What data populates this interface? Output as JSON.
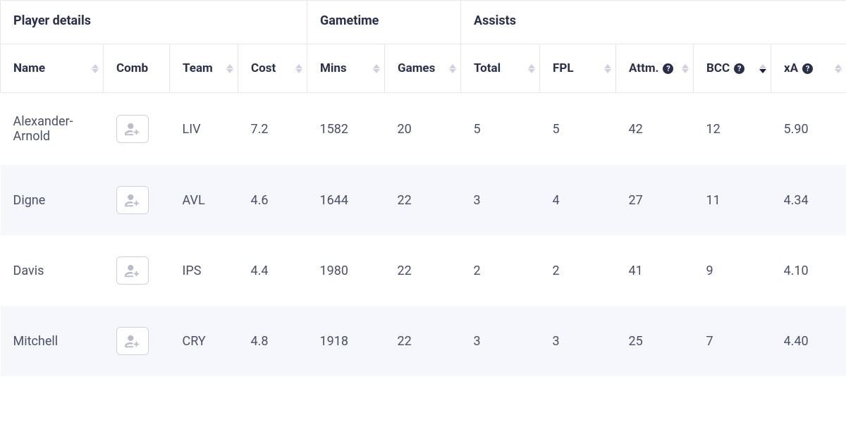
{
  "colors": {
    "text_primary": "#2a2f4a",
    "text_body": "#4a4f6a",
    "border": "#e5e7ee",
    "row_alt": "#f6f7fa",
    "sort_inactive": "#cfd2de",
    "sort_active": "#1a1d33",
    "icon_muted": "#b9bdc9"
  },
  "table": {
    "groups": [
      {
        "label": "Player details",
        "span": 4
      },
      {
        "label": "Gametime",
        "span": 2
      },
      {
        "label": "Assists",
        "span": 5
      }
    ],
    "columns": [
      {
        "key": "name",
        "label": "Name",
        "help": false,
        "sorted": null
      },
      {
        "key": "comb",
        "label": "Comb",
        "help": false,
        "sorted": null,
        "nosort": true
      },
      {
        "key": "team",
        "label": "Team",
        "help": false,
        "sorted": null
      },
      {
        "key": "cost",
        "label": "Cost",
        "help": false,
        "sorted": null
      },
      {
        "key": "mins",
        "label": "Mins",
        "help": false,
        "sorted": null
      },
      {
        "key": "games",
        "label": "Games",
        "help": false,
        "sorted": null
      },
      {
        "key": "total",
        "label": "Total",
        "help": false,
        "sorted": null
      },
      {
        "key": "fpl",
        "label": "FPL",
        "help": false,
        "sorted": null
      },
      {
        "key": "attm",
        "label": "Attm.",
        "help": true,
        "sorted": null
      },
      {
        "key": "bcc",
        "label": "BCC",
        "help": true,
        "sorted": "desc"
      },
      {
        "key": "xa",
        "label": "xA",
        "help": true,
        "sorted": null
      }
    ],
    "rows": [
      {
        "name": "Alexander-Arnold",
        "team": "LIV",
        "cost": "7.2",
        "mins": "1582",
        "games": "20",
        "total": "5",
        "fpl": "5",
        "attm": "42",
        "bcc": "12",
        "xa": "5.90"
      },
      {
        "name": "Digne",
        "team": "AVL",
        "cost": "4.6",
        "mins": "1644",
        "games": "22",
        "total": "3",
        "fpl": "4",
        "attm": "27",
        "bcc": "11",
        "xa": "4.34"
      },
      {
        "name": "Davis",
        "team": "IPS",
        "cost": "4.4",
        "mins": "1980",
        "games": "22",
        "total": "2",
        "fpl": "2",
        "attm": "41",
        "bcc": "9",
        "xa": "4.10"
      },
      {
        "name": "Mitchell",
        "team": "CRY",
        "cost": "4.8",
        "mins": "1918",
        "games": "22",
        "total": "3",
        "fpl": "3",
        "attm": "25",
        "bcc": "7",
        "xa": "4.40"
      }
    ]
  }
}
